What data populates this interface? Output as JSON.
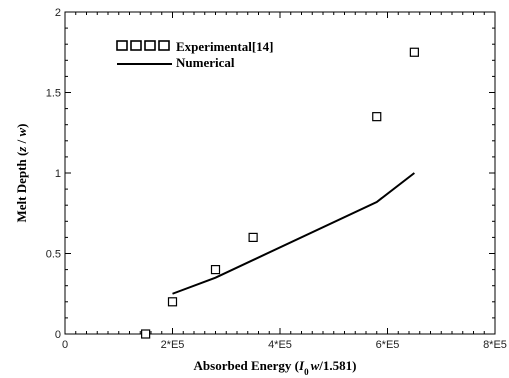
{
  "chart_data": {
    "type": "scatter",
    "xlabel_main": "Absorbed Energy (",
    "xlabel_I": "I",
    "xlabel_sub0": "0",
    "xlabel_w": "w",
    "xlabel_tail": "/1.581)",
    "ylabel_main": "Melt Depth (",
    "ylabel_z": "z",
    "ylabel_slash": " / ",
    "ylabel_w": "w",
    "ylabel_tail": ")",
    "xlim": [
      0,
      800000
    ],
    "ylim": [
      0,
      2
    ],
    "xticks": [
      {
        "value": 0,
        "label": "0"
      },
      {
        "value": 200000,
        "label": "2*E5"
      },
      {
        "value": 400000,
        "label": "4*E5"
      },
      {
        "value": 600000,
        "label": "6*E5"
      },
      {
        "value": 800000,
        "label": "8*E5"
      }
    ],
    "yticks": [
      {
        "value": 0,
        "label": "0"
      },
      {
        "value": 0.5,
        "label": "0.5"
      },
      {
        "value": 1,
        "label": "1"
      },
      {
        "value": 1.5,
        "label": "1.5"
      },
      {
        "value": 2,
        "label": "2"
      }
    ],
    "legend_position": "top-left",
    "series": [
      {
        "name": "Experimental[14]",
        "kind": "scatter",
        "marker": "square",
        "color": "#000000",
        "points": [
          {
            "x": 150000,
            "y": 0.0
          },
          {
            "x": 200000,
            "y": 0.2
          },
          {
            "x": 280000,
            "y": 0.4
          },
          {
            "x": 350000,
            "y": 0.6
          },
          {
            "x": 580000,
            "y": 1.35
          },
          {
            "x": 650000,
            "y": 1.75
          }
        ]
      },
      {
        "name": "Numerical",
        "kind": "line",
        "color": "#000000",
        "points": [
          {
            "x": 200000,
            "y": 0.25
          },
          {
            "x": 280000,
            "y": 0.35
          },
          {
            "x": 580000,
            "y": 0.82
          },
          {
            "x": 650000,
            "y": 1.0
          }
        ]
      }
    ]
  }
}
